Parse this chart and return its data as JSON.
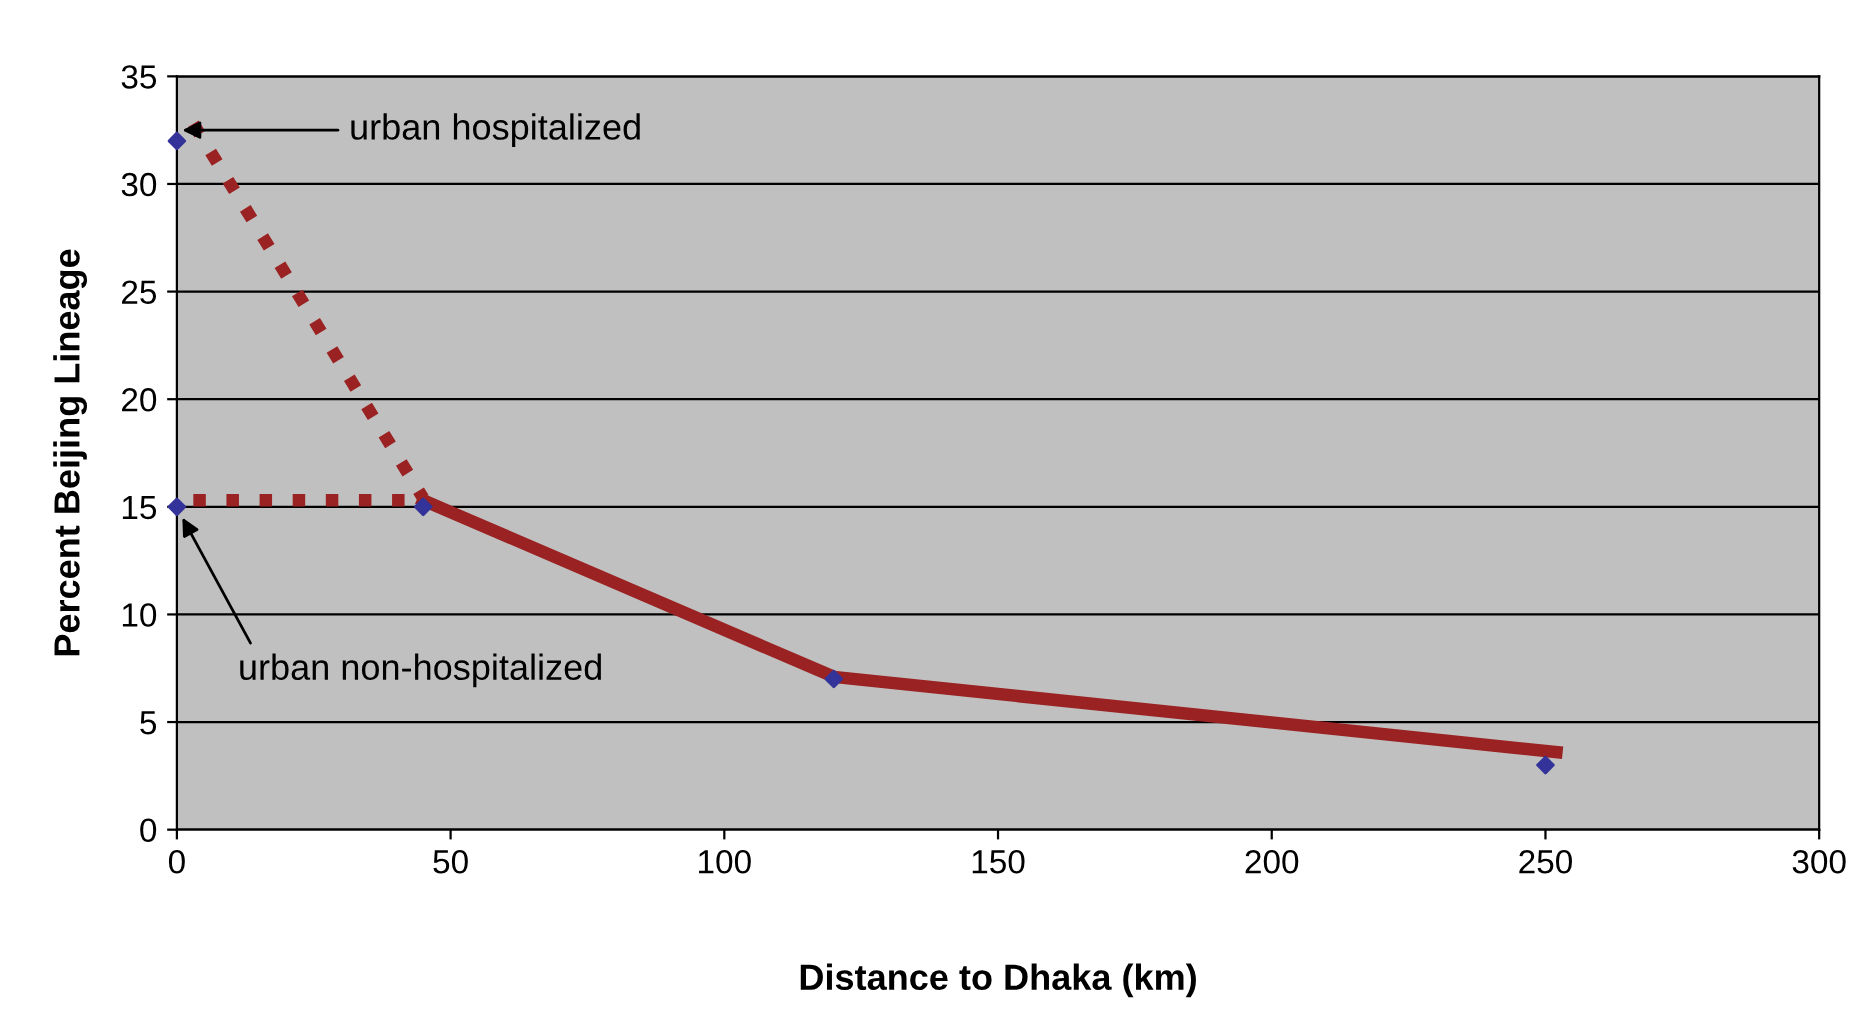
{
  "chart_data": {
    "type": "scatter",
    "xlabel": "Distance to Dhaka (km)",
    "ylabel": "Percent Beijing Lineage",
    "xlim": [
      0,
      300
    ],
    "xticks": [
      0,
      50,
      100,
      150,
      200,
      250,
      300
    ],
    "ylim": [
      0,
      35
    ],
    "yticks": [
      0,
      5,
      10,
      15,
      20,
      25,
      30,
      35
    ],
    "grid": "y",
    "legend": false,
    "series": [
      {
        "type": "line",
        "color": "#9b2222",
        "line_style": "dotted",
        "marker": "none",
        "x": [
          3,
          45
        ],
        "values": [
          32.8,
          15.4
        ]
      },
      {
        "type": "line",
        "color": "#9b2222",
        "line_style": "dotted",
        "marker": "none",
        "x": [
          3,
          45
        ],
        "values": [
          15.3,
          15.3
        ]
      },
      {
        "type": "line",
        "color": "#9b2222",
        "line_style": "solid",
        "marker": "none",
        "x": [
          45,
          120,
          252
        ],
        "values": [
          15.3,
          7.1,
          3.6
        ]
      },
      {
        "color": "#333399",
        "marker": "diamond",
        "x": [
          0,
          0,
          45,
          120,
          250
        ],
        "values": [
          32,
          15,
          15,
          7,
          3
        ]
      }
    ],
    "annotations": [
      {
        "text": "urban hospitalized",
        "x": 1,
        "y": 32.5
      },
      {
        "text": "urban non-hospitalized",
        "x": 1,
        "y": 14.5
      }
    ]
  }
}
